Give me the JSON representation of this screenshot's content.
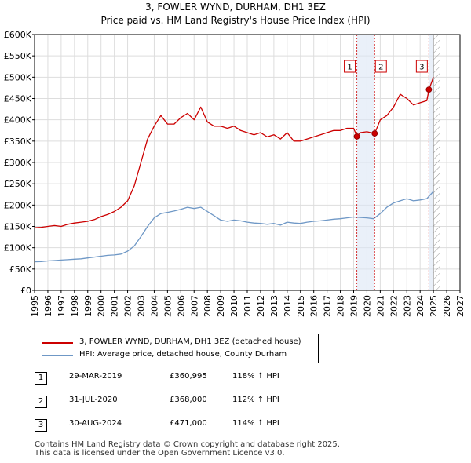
{
  "chart_data": {
    "type": "line",
    "title": "3, FOWLER WYND, DURHAM, DH1 3EZ",
    "subtitle": "Price paid vs. HM Land Registry's House Price Index (HPI)",
    "xlim": [
      1995,
      2027
    ],
    "ylim": [
      0,
      600000
    ],
    "x_ticks": [
      1995,
      1996,
      1997,
      1998,
      1999,
      2000,
      2001,
      2002,
      2003,
      2004,
      2005,
      2006,
      2007,
      2008,
      2009,
      2010,
      2011,
      2012,
      2013,
      2014,
      2015,
      2016,
      2017,
      2018,
      2019,
      2020,
      2021,
      2022,
      2023,
      2024,
      2025,
      2026,
      2027
    ],
    "y_ticks": [
      0,
      50000,
      100000,
      150000,
      200000,
      250000,
      300000,
      350000,
      400000,
      450000,
      500000,
      550000,
      600000
    ],
    "y_tick_labels": [
      "£0",
      "£50K",
      "£100K",
      "£150K",
      "£200K",
      "£250K",
      "£300K",
      "£350K",
      "£400K",
      "£450K",
      "£500K",
      "£550K",
      "£600K"
    ],
    "grid": true,
    "colors": {
      "property": "#cc0000",
      "hpi": "#6f98c6",
      "marker_line": "#cc0000",
      "hatch": "#999999",
      "shade": "#dce6f5"
    },
    "series": [
      {
        "name": "3, FOWLER WYND, DURHAM, DH1 3EZ (detached house)",
        "x": [
          1995.0,
          1995.5,
          1996.0,
          1996.5,
          1997.0,
          1997.5,
          1998.0,
          1998.5,
          1999.0,
          1999.5,
          2000.0,
          2000.5,
          2001.0,
          2001.5,
          2002.0,
          2002.5,
          2003.0,
          2003.5,
          2004.0,
          2004.5,
          2005.0,
          2005.5,
          2006.0,
          2006.5,
          2007.0,
          2007.5,
          2008.0,
          2008.5,
          2009.0,
          2009.5,
          2010.0,
          2010.5,
          2011.0,
          2011.5,
          2012.0,
          2012.5,
          2013.0,
          2013.5,
          2014.0,
          2014.5,
          2015.0,
          2015.5,
          2016.0,
          2016.5,
          2017.0,
          2017.5,
          2018.0,
          2018.5,
          2019.0,
          2019.25,
          2019.5,
          2020.0,
          2020.58,
          2021.0,
          2021.5,
          2022.0,
          2022.5,
          2023.0,
          2023.5,
          2024.0,
          2024.5,
          2024.67,
          2025.0
        ],
        "y": [
          147000,
          148000,
          150000,
          152000,
          150000,
          155000,
          158000,
          160000,
          162000,
          166000,
          173000,
          178000,
          185000,
          195000,
          210000,
          245000,
          300000,
          355000,
          385000,
          410000,
          390000,
          390000,
          405000,
          415000,
          400000,
          430000,
          395000,
          385000,
          385000,
          380000,
          385000,
          375000,
          370000,
          365000,
          370000,
          360000,
          365000,
          355000,
          370000,
          350000,
          350000,
          355000,
          360000,
          365000,
          370000,
          375000,
          375000,
          380000,
          380000,
          360995,
          370000,
          372000,
          368000,
          400000,
          410000,
          430000,
          460000,
          450000,
          435000,
          440000,
          445000,
          471000,
          500000
        ]
      },
      {
        "name": "HPI: Average price, detached house, County Durham",
        "x": [
          1995.0,
          1995.5,
          1996.0,
          1996.5,
          1997.0,
          1997.5,
          1998.0,
          1998.5,
          1999.0,
          1999.5,
          2000.0,
          2000.5,
          2001.0,
          2001.5,
          2002.0,
          2002.5,
          2003.0,
          2003.5,
          2004.0,
          2004.5,
          2005.0,
          2005.5,
          2006.0,
          2006.5,
          2007.0,
          2007.5,
          2008.0,
          2008.5,
          2009.0,
          2009.5,
          2010.0,
          2010.5,
          2011.0,
          2011.5,
          2012.0,
          2012.5,
          2013.0,
          2013.5,
          2014.0,
          2014.5,
          2015.0,
          2015.5,
          2016.0,
          2016.5,
          2017.0,
          2017.5,
          2018.0,
          2018.5,
          2019.0,
          2019.5,
          2020.0,
          2020.5,
          2021.0,
          2021.5,
          2022.0,
          2022.5,
          2023.0,
          2023.5,
          2024.0,
          2024.5,
          2025.0
        ],
        "y": [
          67000,
          67500,
          69000,
          70000,
          71000,
          72000,
          73000,
          74000,
          76000,
          78000,
          80000,
          82000,
          83000,
          85000,
          92000,
          104000,
          126000,
          150000,
          170000,
          180000,
          183000,
          186000,
          190000,
          195000,
          192000,
          195000,
          185000,
          175000,
          165000,
          162000,
          165000,
          163000,
          160000,
          158000,
          157000,
          155000,
          157000,
          153000,
          160000,
          158000,
          157000,
          160000,
          162000,
          163000,
          165000,
          167000,
          168000,
          170000,
          172000,
          171000,
          170000,
          168000,
          180000,
          195000,
          205000,
          210000,
          215000,
          210000,
          212000,
          215000,
          232000
        ]
      }
    ],
    "annotations": [
      {
        "label": "1",
        "x": 2019.24,
        "y": 360995
      },
      {
        "label": "2",
        "x": 2020.58,
        "y": 368000
      },
      {
        "label": "3",
        "x": 2024.66,
        "y": 471000
      }
    ],
    "future_hatch_from": 2025.0
  },
  "legend": {
    "property_label": "3, FOWLER WYND, DURHAM, DH1 3EZ (detached house)",
    "hpi_label": "HPI: Average price, detached house, County Durham"
  },
  "sales": [
    {
      "num": "1",
      "date": "29-MAR-2019",
      "price": "£360,995",
      "hpi": "118% ↑ HPI"
    },
    {
      "num": "2",
      "date": "31-JUL-2020",
      "price": "£368,000",
      "hpi": "112% ↑ HPI"
    },
    {
      "num": "3",
      "date": "30-AUG-2024",
      "price": "£471,000",
      "hpi": "114% ↑ HPI"
    }
  ],
  "footer": {
    "line1": "Contains HM Land Registry data © Crown copyright and database right 2025.",
    "line2": "This data is licensed under the Open Government Licence v3.0."
  }
}
